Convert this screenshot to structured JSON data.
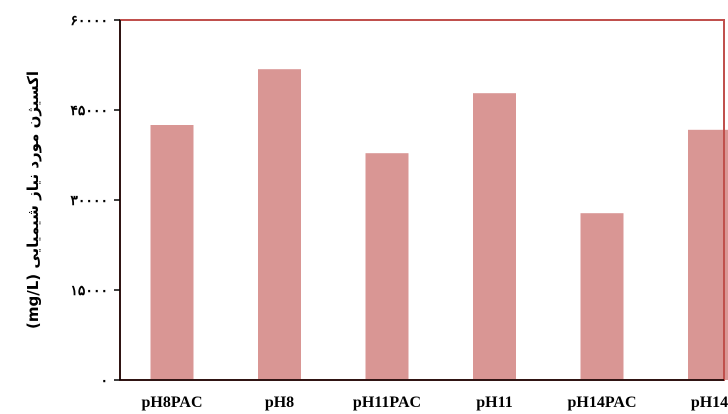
{
  "chart_data": {
    "type": "bar",
    "categories": [
      "pH8PAC",
      "pH8",
      "pH11PAC",
      "pH11",
      "pH14PAC",
      "pH14"
    ],
    "values": [
      42500,
      51800,
      37800,
      47800,
      27800,
      41700
    ],
    "ylabel": "اکسیژن مورد نیاز شیمیایی (mg/L)",
    "ylim": [
      0,
      60000
    ],
    "yticks": [
      0,
      15000,
      30000,
      45000,
      60000
    ],
    "ytick_labels": [
      "۰",
      "۱۵۰۰۰",
      "۳۰۰۰۰",
      "۴۵۰۰۰",
      "۶۰۰۰۰"
    ],
    "grid": false,
    "legend": "none",
    "colors": {
      "bar": "#d99694",
      "frame": "#c0504d",
      "axis": "#000000"
    }
  }
}
